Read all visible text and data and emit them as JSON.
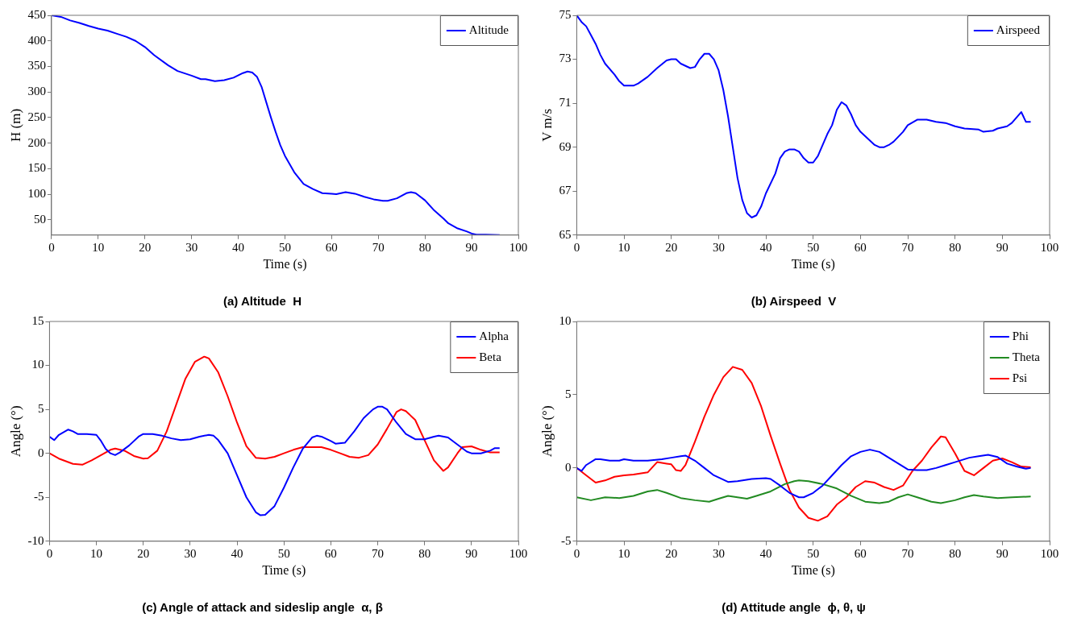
{
  "chart_data": [
    {
      "type": "line",
      "title": "(a) Altitude  H",
      "xlabel": "Time (s)",
      "ylabel": "H (m)",
      "xlim": [
        0,
        100
      ],
      "xticks": [
        0,
        10,
        20,
        30,
        40,
        50,
        60,
        70,
        80,
        90,
        100
      ],
      "ylim": [
        20,
        450
      ],
      "yticks": [
        50,
        100,
        150,
        200,
        250,
        300,
        350,
        400,
        450
      ],
      "grid": false,
      "legend": "top right",
      "series": [
        {
          "name": "Altitude",
          "color": "#0000ff",
          "x": [
            0,
            2,
            4,
            6,
            8,
            10,
            12,
            14,
            16,
            18,
            20,
            22,
            25,
            27,
            30,
            32,
            33,
            35,
            37,
            39,
            41,
            42,
            43,
            44,
            45,
            46,
            47,
            48,
            49,
            50,
            52,
            54,
            56,
            58,
            60,
            61,
            63,
            65,
            67,
            69,
            71,
            72,
            74,
            76,
            77,
            78,
            80,
            82,
            84,
            85,
            87,
            89,
            90,
            91,
            93,
            96
          ],
          "values": [
            450,
            447,
            440,
            435,
            429,
            424,
            420,
            414,
            408,
            400,
            388,
            372,
            352,
            341,
            332,
            325,
            325,
            321,
            323,
            328,
            337,
            340,
            338,
            330,
            310,
            280,
            250,
            222,
            196,
            175,
            143,
            120,
            110,
            102,
            101,
            100,
            104,
            101,
            95,
            90,
            87,
            87,
            92,
            102,
            104,
            102,
            88,
            68,
            52,
            43,
            33,
            27,
            23,
            21,
            21,
            20
          ]
        }
      ]
    },
    {
      "type": "line",
      "title": "(b) Airspeed  V",
      "xlabel": "Time (s)",
      "ylabel": "V m/s",
      "xlim": [
        0,
        100
      ],
      "xticks": [
        0,
        10,
        20,
        30,
        40,
        50,
        60,
        70,
        80,
        90,
        100
      ],
      "ylim": [
        65,
        75
      ],
      "yticks": [
        65,
        67,
        69,
        71,
        73,
        75
      ],
      "grid": false,
      "legend": "top right",
      "series": [
        {
          "name": "Airspeed",
          "color": "#0000ff",
          "x": [
            0,
            1,
            2,
            3,
            4,
            5,
            6,
            8,
            9,
            10,
            12,
            13,
            15,
            17,
            19,
            20,
            21,
            22,
            24,
            25,
            26,
            27,
            28,
            29,
            30,
            31,
            32,
            33,
            34,
            35,
            36,
            37,
            38,
            39,
            40,
            42,
            43,
            44,
            45,
            46,
            47,
            48,
            49,
            50,
            51,
            53,
            54,
            55,
            56,
            57,
            58,
            59,
            60,
            62,
            63,
            64,
            65,
            66,
            67,
            69,
            70,
            72,
            74,
            76,
            78,
            80,
            82,
            85,
            86,
            88,
            89,
            91,
            92,
            94,
            95,
            96
          ],
          "values": [
            75,
            74.7,
            74.5,
            74.1,
            73.7,
            73.2,
            72.8,
            72.3,
            72,
            71.8,
            71.8,
            71.9,
            72.2,
            72.6,
            72.95,
            73,
            73,
            72.8,
            72.6,
            72.65,
            73,
            73.25,
            73.25,
            73,
            72.5,
            71.6,
            70.4,
            69,
            67.6,
            66.6,
            66,
            65.8,
            65.9,
            66.3,
            66.9,
            67.8,
            68.5,
            68.8,
            68.9,
            68.9,
            68.8,
            68.5,
            68.3,
            68.3,
            68.6,
            69.6,
            70,
            70.7,
            71.05,
            70.9,
            70.5,
            70,
            69.7,
            69.3,
            69.1,
            69,
            69,
            69.1,
            69.25,
            69.7,
            70,
            70.25,
            70.25,
            70.15,
            70.1,
            69.95,
            69.85,
            69.8,
            69.7,
            69.75,
            69.85,
            69.95,
            70.1,
            70.6,
            70.15,
            70.15
          ]
        }
      ]
    },
    {
      "type": "line",
      "title": "(c) Angle of attack and sideslip angle  α, β",
      "xlabel": "Time (s)",
      "ylabel": "Angle (°)",
      "xlim": [
        0,
        100
      ],
      "xticks": [
        0,
        10,
        20,
        30,
        40,
        50,
        60,
        70,
        80,
        90,
        100
      ],
      "ylim": [
        -10,
        15
      ],
      "yticks": [
        -10,
        -5,
        0,
        5,
        10,
        15
      ],
      "grid": false,
      "legend": "top right",
      "series": [
        {
          "name": "Alpha",
          "color": "#0000ff",
          "x": [
            0,
            1,
            2,
            4,
            5,
            6,
            8,
            10,
            11,
            12,
            13,
            14,
            15,
            17,
            19,
            20,
            22,
            24,
            26,
            28,
            30,
            32,
            34,
            35,
            36,
            38,
            40,
            42,
            44,
            45,
            46,
            48,
            50,
            52,
            54,
            56,
            57,
            58,
            60,
            61,
            63,
            65,
            67,
            69,
            70,
            71,
            72,
            74,
            76,
            78,
            80,
            82,
            83,
            85,
            87,
            89,
            90,
            92,
            94,
            95,
            96
          ],
          "values": [
            1.9,
            1.5,
            2.1,
            2.7,
            2.5,
            2.2,
            2.2,
            2.1,
            1.4,
            0.5,
            0,
            -0.2,
            0.1,
            0.9,
            1.9,
            2.2,
            2.2,
            2,
            1.7,
            1.5,
            1.6,
            1.9,
            2.1,
            2,
            1.5,
            0,
            -2.5,
            -5,
            -6.7,
            -7.05,
            -7,
            -6,
            -3.9,
            -1.6,
            0.5,
            1.8,
            2,
            1.9,
            1.4,
            1.1,
            1.2,
            2.5,
            4,
            5,
            5.3,
            5.3,
            5,
            3.5,
            2.2,
            1.6,
            1.6,
            1.9,
            2,
            1.8,
            1,
            0.2,
            0,
            0,
            0.3,
            0.6,
            0.6
          ]
        },
        {
          "name": "Beta",
          "color": "#ff0000",
          "x": [
            0,
            2,
            5,
            7,
            9,
            11,
            13,
            14,
            16,
            18,
            20,
            21,
            23,
            25,
            27,
            29,
            31,
            33,
            34,
            36,
            38,
            40,
            42,
            44,
            46,
            48,
            50,
            52,
            54,
            56,
            58,
            60,
            62,
            64,
            66,
            68,
            70,
            72,
            74,
            75,
            76,
            78,
            80,
            82,
            84,
            85,
            87,
            88,
            90,
            92,
            94,
            96
          ],
          "values": [
            0,
            -0.6,
            -1.2,
            -1.3,
            -0.8,
            -0.2,
            0.4,
            0.55,
            0.3,
            -0.3,
            -0.6,
            -0.55,
            0.3,
            2.5,
            5.5,
            8.5,
            10.4,
            11,
            10.8,
            9.2,
            6.5,
            3.5,
            0.8,
            -0.5,
            -0.6,
            -0.4,
            0,
            0.4,
            0.7,
            0.7,
            0.7,
            0.4,
            0,
            -0.4,
            -0.5,
            -0.2,
            1,
            2.8,
            4.7,
            5,
            4.8,
            3.8,
            1.5,
            -0.8,
            -2,
            -1.6,
            0,
            0.7,
            0.8,
            0.4,
            0.1,
            0.1
          ]
        }
      ]
    },
    {
      "type": "line",
      "title": "(d) Attitude angle  ϕ, θ, ψ",
      "xlabel": "Time (s)",
      "ylabel": "Angle (°)",
      "xlim": [
        0,
        100
      ],
      "xticks": [
        0,
        10,
        20,
        30,
        40,
        50,
        60,
        70,
        80,
        90,
        100
      ],
      "ylim": [
        -5,
        10
      ],
      "yticks": [
        -5,
        0,
        5,
        10
      ],
      "grid": false,
      "legend": "top right",
      "series": [
        {
          "name": "Phi",
          "color": "#0000ff",
          "x": [
            0,
            1,
            2,
            4,
            5,
            7,
            9,
            10,
            12,
            15,
            18,
            20,
            22,
            23,
            25,
            27,
            29,
            32,
            34,
            37,
            40,
            41,
            43,
            45,
            47,
            48,
            50,
            52,
            54,
            56,
            58,
            60,
            62,
            64,
            66,
            68,
            70,
            72,
            74,
            76,
            78,
            80,
            83,
            85,
            87,
            89,
            91,
            93,
            95,
            96
          ],
          "values": [
            0,
            -0.2,
            0.2,
            0.6,
            0.6,
            0.5,
            0.5,
            0.6,
            0.5,
            0.5,
            0.6,
            0.7,
            0.8,
            0.85,
            0.5,
            0,
            -0.5,
            -0.95,
            -0.9,
            -0.75,
            -0.7,
            -0.75,
            -1.2,
            -1.7,
            -2,
            -2,
            -1.7,
            -1.2,
            -0.5,
            0.2,
            0.8,
            1.1,
            1.25,
            1.1,
            0.7,
            0.3,
            -0.1,
            -0.15,
            -0.15,
            0,
            0.2,
            0.4,
            0.7,
            0.8,
            0.9,
            0.75,
            0.3,
            0.1,
            -0.05,
            0
          ]
        },
        {
          "name": "Theta",
          "color": "#228b22",
          "x": [
            0,
            3,
            6,
            9,
            12,
            15,
            17,
            19,
            22,
            25,
            28,
            30,
            32,
            34,
            36,
            38,
            41,
            44,
            46,
            47,
            49,
            52,
            55,
            58,
            61,
            64,
            66,
            68,
            70,
            72,
            75,
            77,
            80,
            82,
            84,
            86,
            89,
            92,
            96
          ],
          "values": [
            -2,
            -2.2,
            -2,
            -2.05,
            -1.9,
            -1.6,
            -1.5,
            -1.7,
            -2.05,
            -2.2,
            -2.3,
            -2.1,
            -1.9,
            -2,
            -2.1,
            -1.9,
            -1.6,
            -1.1,
            -0.9,
            -0.85,
            -0.9,
            -1.1,
            -1.4,
            -1.9,
            -2.3,
            -2.4,
            -2.3,
            -2,
            -1.8,
            -2,
            -2.3,
            -2.4,
            -2.2,
            -2,
            -1.85,
            -1.95,
            -2.05,
            -2,
            -1.95
          ]
        },
        {
          "name": "Psi",
          "color": "#ff0000",
          "x": [
            0,
            2,
            4,
            6,
            8,
            10,
            12,
            15,
            17,
            19,
            20,
            21,
            22,
            23,
            25,
            27,
            29,
            31,
            33,
            35,
            37,
            39,
            41,
            43,
            45,
            47,
            49,
            51,
            53,
            55,
            57,
            59,
            61,
            63,
            65,
            67,
            69,
            71,
            73,
            75,
            77,
            78,
            80,
            82,
            84,
            86,
            88,
            90,
            92,
            94,
            96
          ],
          "values": [
            0,
            -0.5,
            -1,
            -0.85,
            -0.6,
            -0.5,
            -0.45,
            -0.3,
            0.4,
            0.3,
            0.25,
            -0.15,
            -0.2,
            0.2,
            1.8,
            3.5,
            5,
            6.2,
            6.9,
            6.7,
            5.8,
            4.2,
            2.2,
            0.3,
            -1.5,
            -2.7,
            -3.4,
            -3.6,
            -3.3,
            -2.5,
            -2,
            -1.3,
            -0.9,
            -1,
            -1.3,
            -1.5,
            -1.2,
            -0.2,
            0.5,
            1.4,
            2.15,
            2.1,
            1,
            -0.2,
            -0.5,
            0,
            0.5,
            0.65,
            0.4,
            0.1,
            0.05
          ]
        }
      ]
    }
  ]
}
